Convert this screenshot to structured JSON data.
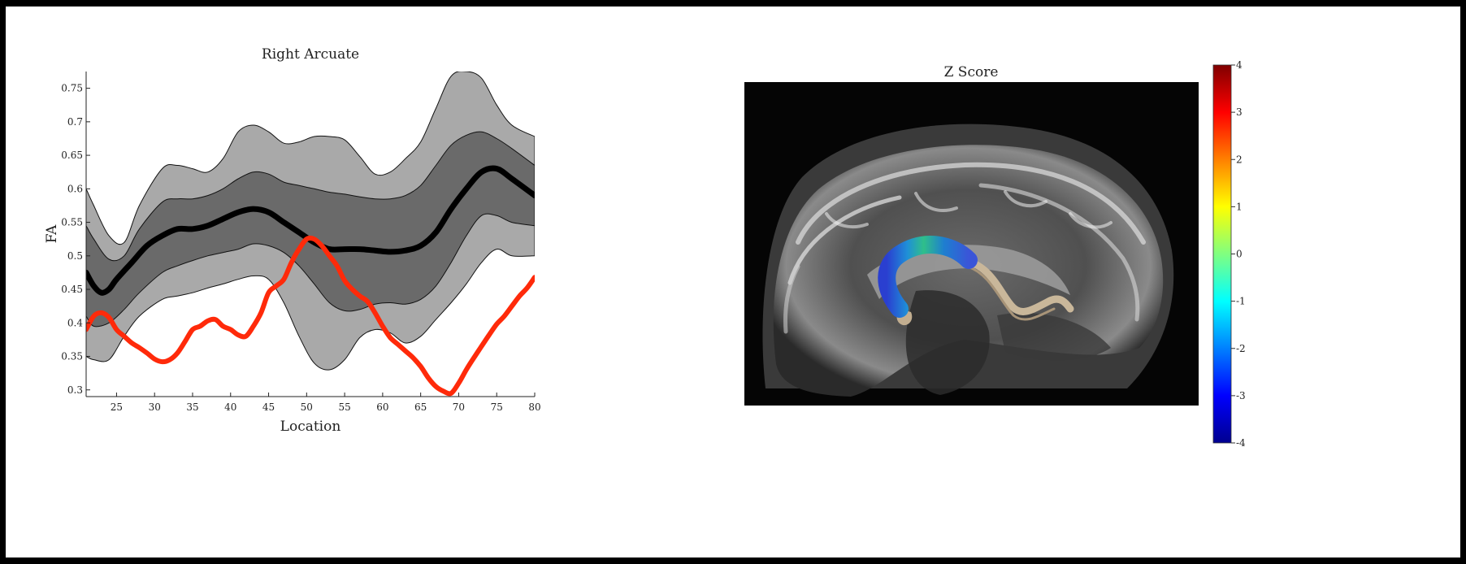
{
  "figure": {
    "chart_data": [
      {
        "type": "line",
        "title": "Right Arcuate",
        "xlabel": "Location",
        "ylabel": "FA",
        "xlim": [
          21,
          80
        ],
        "ylim": [
          0.29,
          0.775
        ],
        "xticks": [
          25,
          30,
          35,
          40,
          45,
          50,
          55,
          60,
          65,
          70,
          75,
          80
        ],
        "yticks": [
          0.3,
          0.35,
          0.4,
          0.45,
          0.5,
          0.55,
          0.6,
          0.65,
          0.7,
          0.75
        ],
        "ytick_labels": [
          "0.3",
          "0.35",
          "0.4",
          "0.45",
          "0.5",
          "0.55",
          "0.6",
          "0.65",
          "0.7",
          "0.75"
        ],
        "grid": false,
        "bands": [
          {
            "x": [
              21,
              22,
              24,
              26,
              28,
              31,
              33,
              35,
              37,
              39,
              41,
              43,
              45,
              47,
              49,
              51,
              53,
              55,
              57,
              59,
              61,
              63,
              65,
              67,
              69,
              71,
              73,
              75,
              77,
              80
            ],
            "upper": [
              0.6,
              0.575,
              0.53,
              0.52,
              0.575,
              0.63,
              0.635,
              0.63,
              0.625,
              0.645,
              0.685,
              0.695,
              0.685,
              0.668,
              0.67,
              0.678,
              0.678,
              0.673,
              0.648,
              0.622,
              0.625,
              0.645,
              0.67,
              0.72,
              0.768,
              0.775,
              0.765,
              0.725,
              0.695,
              0.678
            ],
            "lower": [
              0.35,
              0.345,
              0.345,
              0.38,
              0.41,
              0.435,
              0.44,
              0.445,
              0.452,
              0.458,
              0.465,
              0.47,
              0.465,
              0.43,
              0.38,
              0.34,
              0.33,
              0.345,
              0.378,
              0.39,
              0.385,
              0.37,
              0.38,
              0.405,
              0.43,
              0.458,
              0.49,
              0.51,
              0.5,
              0.5
            ],
            "color": "#a9a9a9"
          },
          {
            "x": [
              21,
              22,
              24,
              26,
              28,
              31,
              33,
              35,
              37,
              39,
              41,
              43,
              45,
              47,
              49,
              51,
              53,
              55,
              57,
              59,
              61,
              63,
              65,
              67,
              69,
              71,
              73,
              75,
              77,
              80
            ],
            "upper": [
              0.545,
              0.525,
              0.495,
              0.5,
              0.54,
              0.58,
              0.585,
              0.585,
              0.59,
              0.6,
              0.615,
              0.625,
              0.622,
              0.61,
              0.605,
              0.6,
              0.595,
              0.592,
              0.588,
              0.585,
              0.585,
              0.59,
              0.605,
              0.635,
              0.665,
              0.68,
              0.685,
              0.675,
              0.66,
              0.635
            ],
            "lower": [
              0.41,
              0.395,
              0.4,
              0.42,
              0.445,
              0.475,
              0.485,
              0.493,
              0.5,
              0.505,
              0.51,
              0.518,
              0.515,
              0.505,
              0.485,
              0.458,
              0.43,
              0.418,
              0.42,
              0.428,
              0.43,
              0.428,
              0.435,
              0.455,
              0.49,
              0.53,
              0.56,
              0.56,
              0.55,
              0.545
            ],
            "color": "#6a6a6a"
          }
        ],
        "series": [
          {
            "role": "mean",
            "color": "#000000",
            "x": [
              21,
              22,
              23,
              24,
              25,
              27,
              29,
              31,
              33,
              35,
              37,
              39,
              41,
              43,
              45,
              47,
              49,
              51,
              53,
              55,
              57,
              59,
              61,
              63,
              65,
              67,
              69,
              71,
              73,
              75,
              77,
              80
            ],
            "y": [
              0.475,
              0.455,
              0.445,
              0.45,
              0.465,
              0.49,
              0.515,
              0.53,
              0.54,
              0.54,
              0.545,
              0.555,
              0.565,
              0.57,
              0.565,
              0.55,
              0.535,
              0.52,
              0.51,
              0.51,
              0.51,
              0.508,
              0.506,
              0.508,
              0.515,
              0.535,
              0.57,
              0.6,
              0.625,
              0.63,
              0.615,
              0.59
            ]
          },
          {
            "role": "subject",
            "color": "#ff2a0a",
            "x": [
              21,
              22,
              23,
              24,
              25,
              26,
              27,
              28,
              29,
              30,
              31,
              32,
              33,
              34,
              35,
              36,
              37,
              38,
              39,
              40,
              41,
              42,
              43,
              44,
              45,
              46,
              47,
              48,
              49,
              50,
              51,
              52,
              53,
              54,
              55,
              56,
              57,
              58,
              59,
              60,
              61,
              62,
              63,
              64,
              65,
              66,
              67,
              68,
              69,
              70,
              71,
              72,
              73,
              74,
              75,
              76,
              77,
              78,
              79,
              80
            ],
            "y": [
              0.39,
              0.41,
              0.415,
              0.408,
              0.39,
              0.38,
              0.37,
              0.363,
              0.355,
              0.346,
              0.342,
              0.345,
              0.355,
              0.372,
              0.39,
              0.395,
              0.403,
              0.405,
              0.395,
              0.39,
              0.382,
              0.38,
              0.395,
              0.415,
              0.445,
              0.455,
              0.465,
              0.49,
              0.51,
              0.525,
              0.525,
              0.515,
              0.5,
              0.485,
              0.463,
              0.45,
              0.44,
              0.432,
              0.415,
              0.395,
              0.378,
              0.368,
              0.358,
              0.348,
              0.335,
              0.318,
              0.305,
              0.298,
              0.295,
              0.31,
              0.33,
              0.348,
              0.365,
              0.382,
              0.398,
              0.41,
              0.425,
              0.44,
              0.452,
              0.468
            ]
          }
        ]
      }
    ],
    "zscore_panel": {
      "title": "Z Score",
      "colorbar_labels": [
        "4",
        "3",
        "2",
        "1",
        "0",
        "-1",
        "-2",
        "-3",
        "-4"
      ],
      "colormap": [
        "#00008f",
        "#0000ff",
        "#0080ff",
        "#00ffff",
        "#80ff80",
        "#ffff00",
        "#ff8000",
        "#ff0000",
        "#800000"
      ]
    }
  }
}
